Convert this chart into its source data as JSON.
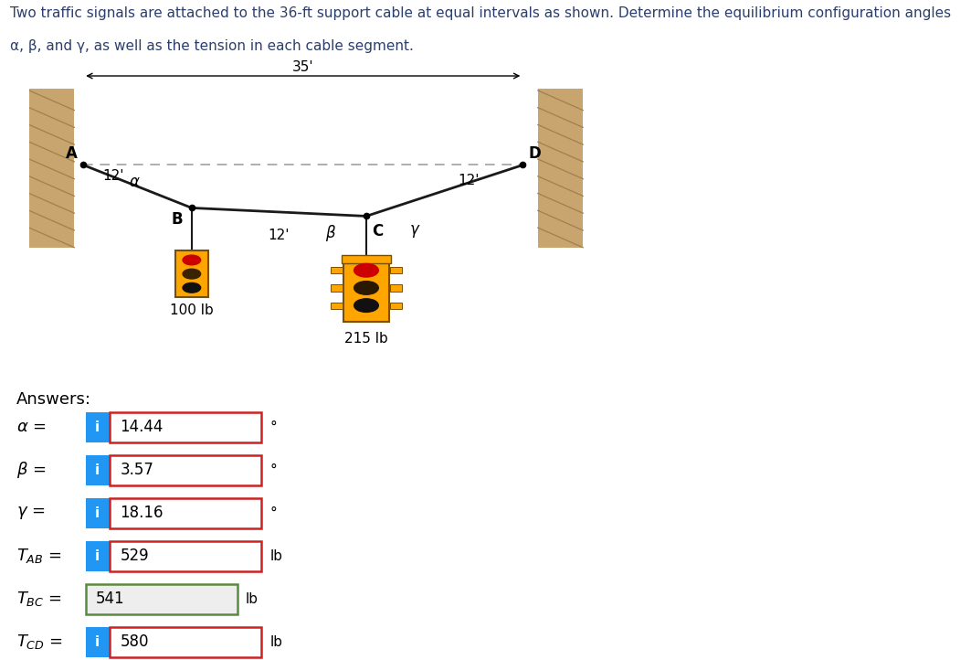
{
  "title_line1": "Two traffic signals are attached to the 36-ft support cable at equal intervals as shown. Determine the equilibrium configuration angles",
  "title_line2": "α, β, and γ, as well as the tension in each cable segment.",
  "dim_label": "35'",
  "wall_color": "#c8a46e",
  "wall_hatch_color": "#a08050",
  "cable_color": "#1a1a1a",
  "dashed_color": "#999999",
  "label_12_AB": "12'",
  "label_12_BC": "12'",
  "label_12_CD": "12'",
  "weight_B": "100 lb",
  "weight_C": "215 lb",
  "alpha_label": "α",
  "beta_label": "β",
  "gamma_label": "γ",
  "node_A": "A",
  "node_B": "B",
  "node_C": "C",
  "node_D": "D",
  "answers_label": "Answers:",
  "answer_rows": [
    {
      "label": "α =",
      "has_i": true,
      "value": "14.44",
      "unit": "°",
      "box_border": "#cc2222",
      "box_bg": "#ffffff",
      "i_bg": "#2196F3"
    },
    {
      "label": "β =",
      "has_i": true,
      "value": "3.57",
      "unit": "°",
      "box_border": "#cc2222",
      "box_bg": "#ffffff",
      "i_bg": "#2196F3"
    },
    {
      "label": "γ =",
      "has_i": true,
      "value": "18.16",
      "unit": "°",
      "box_border": "#cc2222",
      "box_bg": "#ffffff",
      "i_bg": "#2196F3"
    },
    {
      "label": "$T_{AB}$ =",
      "has_i": true,
      "value": "529",
      "unit": "lb",
      "box_border": "#cc2222",
      "box_bg": "#ffffff",
      "i_bg": "#2196F3"
    },
    {
      "label": "$T_{BC}$ =",
      "has_i": false,
      "value": "541",
      "unit": "lb",
      "box_border": "#5a8a3f",
      "box_bg": "#eeeeee",
      "i_bg": null
    },
    {
      "label": "$T_{CD}$ =",
      "has_i": true,
      "value": "580",
      "unit": "lb",
      "box_border": "#cc2222",
      "box_bg": "#ffffff",
      "i_bg": "#2196F3"
    }
  ],
  "fig_width": 10.63,
  "fig_height": 7.22,
  "signal_color": "#FFA500",
  "signal_edge": "#7a5000"
}
